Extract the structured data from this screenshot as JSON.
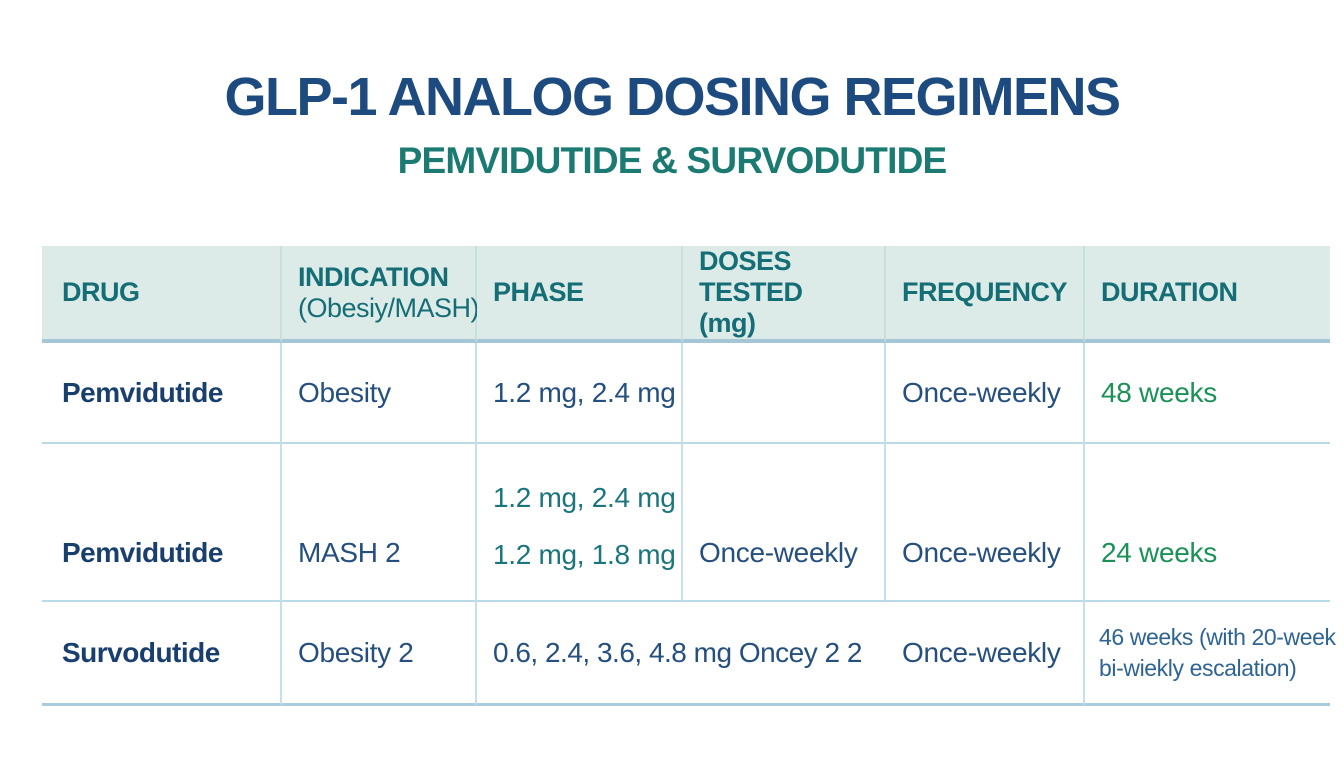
{
  "header": {
    "title": "GLP-1 ANALOG DOSING REGIMENS",
    "subtitle": "PEMVIDUTIDE & SURVODUTIDE"
  },
  "table": {
    "columns": [
      {
        "label": "DRUG",
        "sub": ""
      },
      {
        "label": "INDICATION",
        "sub": "(Obesiy/MASH)"
      },
      {
        "label": "PHASE",
        "sub": ""
      },
      {
        "label": "DOSES TESTED",
        "sub": "(mg)"
      },
      {
        "label": "FREQUENCY",
        "sub": ""
      },
      {
        "label": "DURATION",
        "sub": ""
      }
    ],
    "rows": [
      {
        "drug": "Pemvidutide",
        "indication": "Obesity",
        "phase": "1.2 mg, 2.4 mg",
        "doses_tested": "",
        "frequency": "Once-weekly",
        "duration": "48 weeks"
      },
      {
        "drug": "Pemvidutide",
        "indication": "MASH 2",
        "phase_doses": [
          "1.2 mg, 2.4 mg",
          "1.2 mg, 1.8 mg"
        ],
        "doses_tested": "Once-weekly",
        "frequency": "Once-weekly",
        "duration": "24 weeks"
      },
      {
        "drug": "Survodutide",
        "indication": "Obesity 2",
        "phase_doses_span": "0.6, 2.4, 3.6, 4.8 mg Oncey 2 2",
        "frequency": "Once-weekly",
        "duration_line1": "46 weeks (with 20-week",
        "duration_line2": "bi-wiekly escalation)"
      }
    ]
  },
  "colors": {
    "title_navy": "#1d4b7f",
    "subtitle_teal": "#1b7a72",
    "header_bg": "#dcebe8",
    "header_text": "#156d75",
    "body_navy": "#254f7e",
    "drug_navy": "#193f6e",
    "duration_green": "#1b9157",
    "dose_teal": "#1a757d",
    "duration_blue": "#2e6494",
    "grid_line_light": "#badae8",
    "grid_line_strong": "#a4c7d8"
  }
}
